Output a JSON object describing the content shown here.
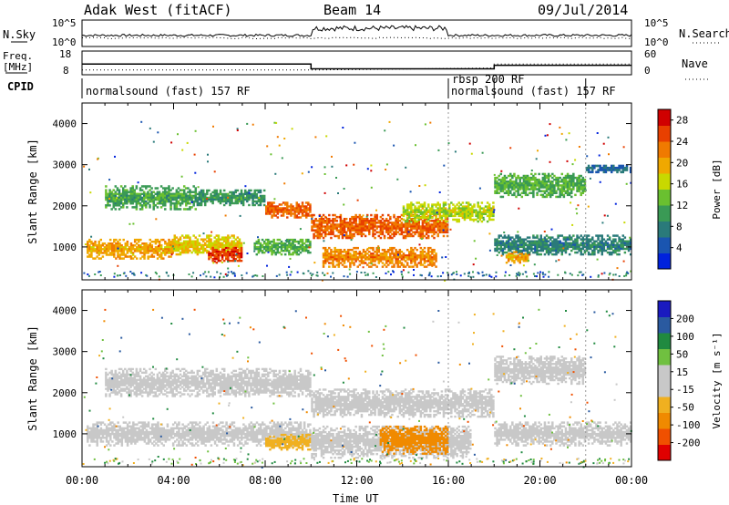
{
  "header": {
    "station": "Adak West (fitACF)",
    "beam": "Beam 14",
    "date": "09/Jul/2014"
  },
  "strip_labels": {
    "nsky": "N.Sky",
    "nsearch": "N.Search",
    "freq": "Freq.",
    "freq_unit": "[MHz]",
    "nave": "Nave",
    "cpid": "CPID",
    "noise_ticks": [
      "10^5",
      "10^0"
    ],
    "freq_ticks": [
      "18",
      "8"
    ],
    "nave_ticks": [
      "60",
      "0"
    ]
  },
  "cpid_segments": [
    {
      "label": "normalsound (fast) 157 RF",
      "start_hour": 0,
      "end_hour": 16
    },
    {
      "label": "rbsp 200 RF",
      "start_hour": 16,
      "end_hour": 18
    },
    {
      "label": "normalsound (fast) 157 RF",
      "start_hour": 18,
      "end_hour": 22
    }
  ],
  "colors": {
    "power": [
      "#0022dd",
      "#1a55b0",
      "#2a7a7a",
      "#3a9a55",
      "#6ac030",
      "#c8d800",
      "#f0a800",
      "#f07a00",
      "#e84000",
      "#d00000"
    ],
    "velocity": [
      "#e00000",
      "#f05000",
      "#f08a00",
      "#f0b020",
      "#c8c8c8",
      "#c8c8c8",
      "#70c040",
      "#208a40",
      "#2a5aa0",
      "#1a1ac0"
    ]
  },
  "chart_data": [
    {
      "type": "line",
      "name": "noise-panel",
      "series": [
        {
          "name": "N.Sky",
          "style": "solid"
        },
        {
          "name": "N.Search",
          "style": "dotted"
        }
      ],
      "yticks": [
        "10^5",
        "10^0"
      ]
    },
    {
      "type": "line",
      "name": "frequency-nave-panel",
      "x": [
        0,
        10,
        10,
        18,
        18,
        24
      ],
      "series": [
        {
          "name": "Freq.",
          "unit": "MHz",
          "values": [
            12.5,
            12.5,
            10.5,
            10.5,
            12,
            12
          ]
        },
        {
          "name": "Nave",
          "values": [
            12,
            12,
            12,
            17,
            27,
            27
          ]
        }
      ],
      "ylim_left": [
        8,
        18
      ],
      "ylim_right": [
        0,
        60
      ]
    },
    {
      "type": "heatmap",
      "name": "power-panel",
      "title": "",
      "xlabel": "",
      "ylabel": "Slant Range [km]",
      "xlim": [
        0,
        24
      ],
      "ylim": [
        200,
        4500
      ],
      "yticks": [
        1000,
        2000,
        3000,
        4000
      ],
      "colorbar": {
        "label": "Power [dB]",
        "ticks": [
          4,
          8,
          12,
          16,
          20,
          24,
          28
        ],
        "range": [
          0,
          30
        ]
      },
      "bands": [
        {
          "t0": 0.2,
          "t1": 4.0,
          "r0": 700,
          "r1": 1200,
          "value": 20
        },
        {
          "t0": 4.0,
          "t1": 7.0,
          "r0": 800,
          "r1": 1300,
          "value": 18
        },
        {
          "t0": 5.5,
          "t1": 7.0,
          "r0": 600,
          "r1": 1000,
          "value": 26
        },
        {
          "t0": 7.5,
          "t1": 10.0,
          "r0": 800,
          "r1": 1200,
          "value": 12
        },
        {
          "t0": 1.0,
          "t1": 5.0,
          "r0": 1900,
          "r1": 2500,
          "value": 11
        },
        {
          "t0": 5.0,
          "t1": 8.0,
          "r0": 2000,
          "r1": 2400,
          "value": 10
        },
        {
          "t0": 8.0,
          "t1": 10.0,
          "r0": 1700,
          "r1": 2100,
          "value": 24
        },
        {
          "t0": 10.0,
          "t1": 16.0,
          "r0": 1200,
          "r1": 1800,
          "value": 24
        },
        {
          "t0": 10.5,
          "t1": 15.5,
          "r0": 500,
          "r1": 1000,
          "value": 22
        },
        {
          "t0": 14.0,
          "t1": 18.0,
          "r0": 1600,
          "r1": 2100,
          "value": 16
        },
        {
          "t0": 18.0,
          "t1": 22.0,
          "r0": 2200,
          "r1": 2800,
          "value": 12
        },
        {
          "t0": 18.0,
          "t1": 24.0,
          "r0": 800,
          "r1": 1300,
          "value": 8
        },
        {
          "t0": 18.5,
          "t1": 19.5,
          "r0": 600,
          "r1": 900,
          "value": 20
        },
        {
          "t0": 22.0,
          "t1": 24.0,
          "r0": 2800,
          "r1": 3000,
          "value": 6
        }
      ]
    },
    {
      "type": "heatmap",
      "name": "velocity-panel",
      "title": "",
      "xlabel": "Time UT",
      "ylabel": "Slant Range [km]",
      "xlim": [
        0,
        24
      ],
      "ylim": [
        200,
        4500
      ],
      "yticks": [
        1000,
        2000,
        3000,
        4000
      ],
      "xticks": [
        "00:00",
        "04:00",
        "08:00",
        "12:00",
        "16:00",
        "20:00",
        "00:00"
      ],
      "colorbar": {
        "label": "Velocity [m s⁻¹]",
        "ticks": [
          200,
          100,
          50,
          15,
          -15,
          -50,
          -100,
          -200
        ]
      },
      "bands": [
        {
          "t0": 0.2,
          "t1": 10.0,
          "r0": 700,
          "r1": 1300,
          "value": 0
        },
        {
          "t0": 1.0,
          "t1": 10.0,
          "r0": 1900,
          "r1": 2600,
          "value": 0
        },
        {
          "t0": 8.0,
          "t1": 10.0,
          "r0": 600,
          "r1": 1000,
          "value": -45
        },
        {
          "t0": 10.0,
          "t1": 18.0,
          "r0": 1400,
          "r1": 2100,
          "value": 0
        },
        {
          "t0": 10.0,
          "t1": 17.0,
          "r0": 400,
          "r1": 1200,
          "value": 0
        },
        {
          "t0": 13.0,
          "t1": 16.0,
          "r0": 500,
          "r1": 1200,
          "value": -70
        },
        {
          "t0": 18.0,
          "t1": 24.0,
          "r0": 700,
          "r1": 1300,
          "value": 0
        },
        {
          "t0": 18.0,
          "t1": 22.0,
          "r0": 2200,
          "r1": 2900,
          "value": 0
        }
      ]
    }
  ]
}
